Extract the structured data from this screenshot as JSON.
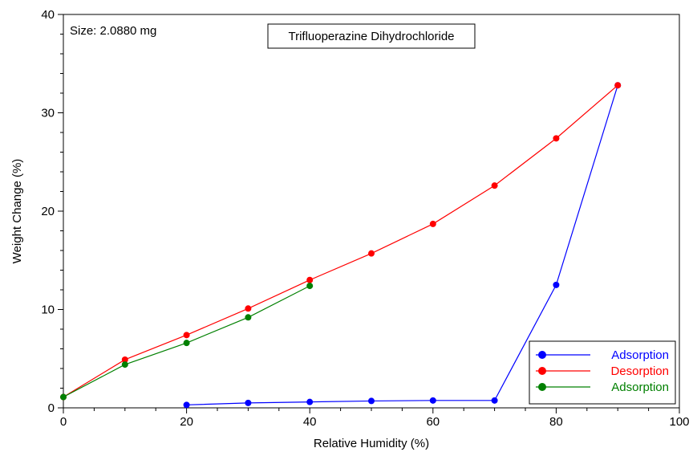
{
  "chart_data": {
    "type": "line",
    "title": "Trifluoperazine Dihydrochloride",
    "annotation": "Size:  2.0880  mg",
    "xlabel": "Relative Humidity (%)",
    "ylabel": "Weight Change (%)",
    "xlim": [
      0,
      100
    ],
    "ylim": [
      0,
      40
    ],
    "xticks": [
      0,
      20,
      40,
      60,
      80,
      100
    ],
    "yticks": [
      0,
      10,
      20,
      30,
      40
    ],
    "grid": false,
    "legend_position": "bottom-right",
    "series": [
      {
        "name": "Adsorption",
        "color": "#0000ff",
        "x": [
          20,
          30,
          40,
          50,
          60,
          70,
          80,
          90
        ],
        "y": [
          0.3,
          0.5,
          0.6,
          0.7,
          0.75,
          0.75,
          12.5,
          32.8
        ]
      },
      {
        "name": "Desorption",
        "color": "#ff0000",
        "x": [
          90,
          80,
          70,
          60,
          50,
          40,
          30,
          20,
          10,
          0
        ],
        "y": [
          32.8,
          27.4,
          22.6,
          18.7,
          15.7,
          13.0,
          10.1,
          7.4,
          4.9,
          1.1
        ]
      },
      {
        "name": "Adsorption",
        "color": "#008000",
        "x": [
          0,
          10,
          20,
          30,
          40
        ],
        "y": [
          1.1,
          4.4,
          6.6,
          9.2,
          12.4
        ]
      }
    ]
  }
}
